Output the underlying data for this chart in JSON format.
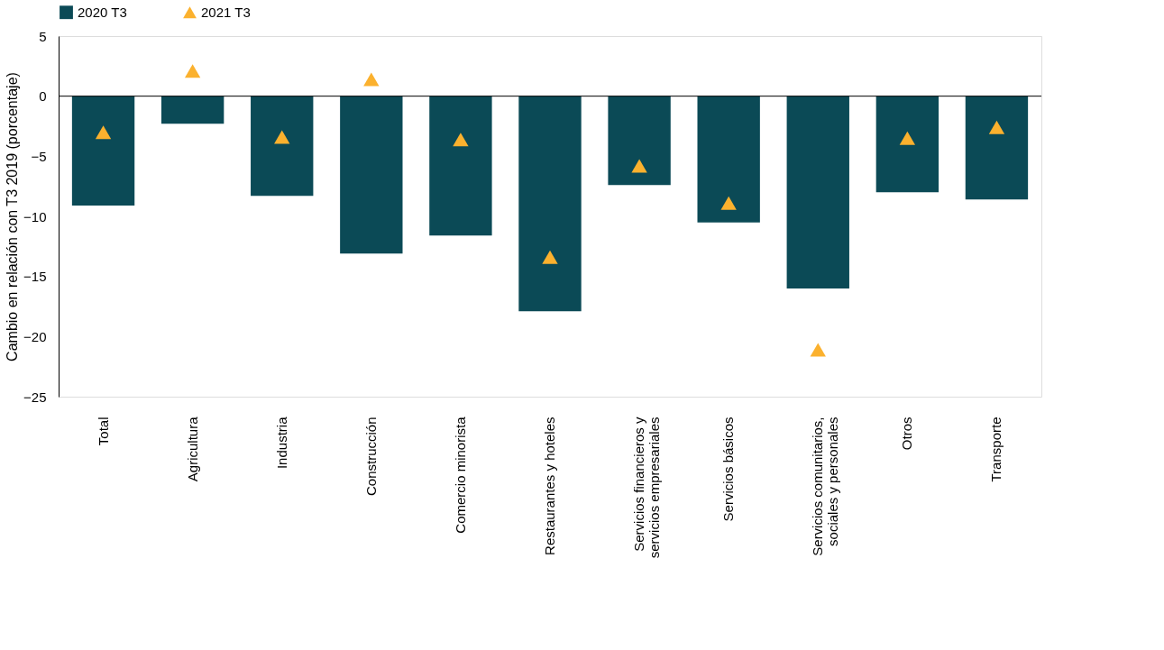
{
  "chart_data": {
    "type": "bar",
    "ylabel": "Cambio en relación con T3 2019 (porcentaje)",
    "categories": [
      "Total",
      "Agricultura",
      "Industria",
      "Construcción",
      "Comercio minorista",
      "Restaurantes y hoteles",
      "Servicios financieros y\nservicios empresariales",
      "Servicios básicos",
      "Servicios comunitarios,\nsociales y personales",
      "Otros",
      "Transporte"
    ],
    "series": [
      {
        "name": "2020 T3",
        "color": "#0b4a56",
        "values": [
          -9.1,
          -2.3,
          -8.3,
          -13.1,
          -11.6,
          -17.9,
          -7.4,
          -10.5,
          -16.0,
          -8.0,
          -8.6
        ]
      },
      {
        "name": "2021 T3",
        "type": "scatter",
        "marker": "triangle",
        "color": "#fbb12e",
        "values": [
          -3.0,
          2.1,
          -3.4,
          1.4,
          -3.6,
          -13.4,
          -5.8,
          -8.9,
          -21.1,
          -3.5,
          -2.6
        ]
      }
    ],
    "ylim": [
      -25,
      5
    ],
    "yticks": [
      -25,
      -20,
      -15,
      -10,
      -5,
      0,
      5
    ],
    "ref_lines": [
      {
        "axis": "y",
        "value": 0,
        "color": "#000000"
      }
    ],
    "grid": false,
    "legend": "top"
  }
}
